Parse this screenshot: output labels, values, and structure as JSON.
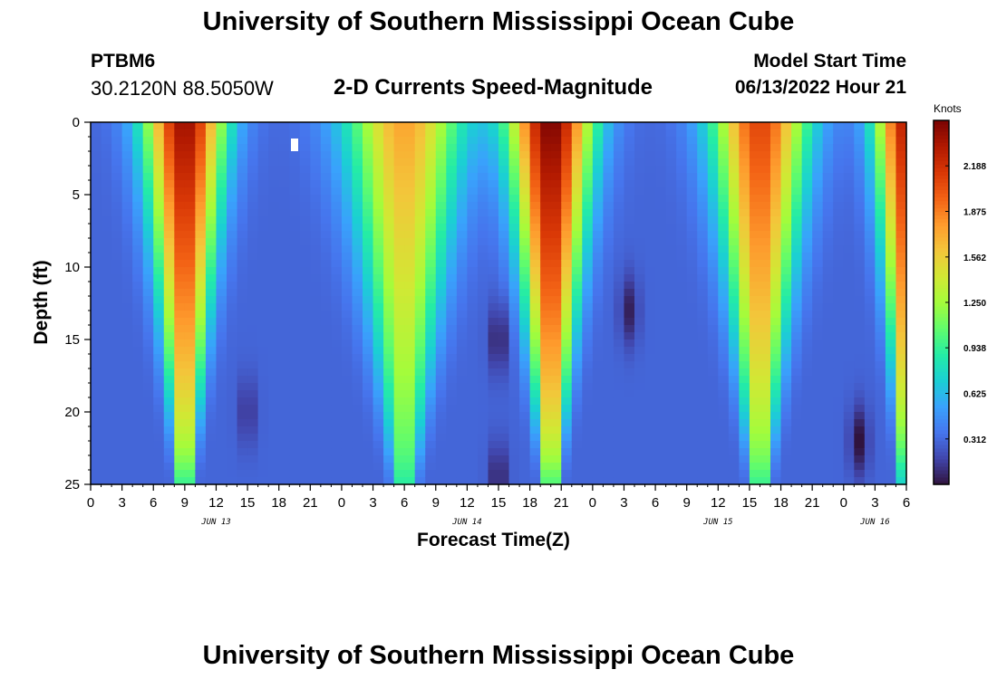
{
  "header": {
    "title": "University of Southern Mississippi Ocean Cube",
    "station": "PTBM6",
    "coordinates": "30.2120N  88.5050W",
    "subtitle": "2-D Currents Speed-Magnitude",
    "model_label": "Model Start Time",
    "model_time": "06/13/2022 Hour 21"
  },
  "footer": {
    "title": "University of Southern Mississippi Ocean Cube"
  },
  "colors": {
    "colormap": [
      "#30123b",
      "#4145ab",
      "#4675ed",
      "#39a2fc",
      "#1bcfd4",
      "#24eca6",
      "#61fc6c",
      "#a4fc3b",
      "#d1e834",
      "#f3c63a",
      "#fe9b2d",
      "#f36315",
      "#d93806",
      "#b11901",
      "#7a0402"
    ]
  },
  "chart_data": {
    "type": "heatmap",
    "title": "2-D Currents Speed-Magnitude",
    "xlabel": "Forecast Time(Z)",
    "ylabel": "Depth (ft)",
    "units": "Knots",
    "x_tick_labels": [
      "0",
      "3",
      "6",
      "9",
      "12",
      "15",
      "18",
      "21",
      "0",
      "3",
      "6",
      "9",
      "12",
      "15",
      "18",
      "21",
      "0",
      "3",
      "6",
      "9",
      "12",
      "15",
      "18",
      "21",
      "0",
      "3",
      "6"
    ],
    "x_tick_hours": [
      0,
      3,
      6,
      9,
      12,
      15,
      18,
      21,
      24,
      27,
      30,
      33,
      36,
      39,
      42,
      45,
      48,
      51,
      54,
      57,
      60,
      63,
      66,
      69,
      72,
      75,
      78
    ],
    "x_range_hours": [
      0,
      78
    ],
    "date_labels": [
      {
        "label": "JUN 13",
        "hour": 12
      },
      {
        "label": "JUN 14",
        "hour": 36
      },
      {
        "label": "JUN 15",
        "hour": 60
      },
      {
        "label": "JUN 16",
        "hour": 75
      }
    ],
    "y_ticks": [
      0,
      5,
      10,
      15,
      20,
      25
    ],
    "y_tick_labels": [
      "0",
      "5",
      "10",
      "15",
      "20",
      "25"
    ],
    "ylim": [
      0,
      25
    ],
    "y_inverted": true,
    "colorbar_ticks": [
      0.312,
      0.625,
      0.938,
      1.25,
      1.562,
      1.875,
      2.188
    ],
    "colorbar_tick_labels": [
      "0.312",
      "0.625",
      "0.938",
      "1.250",
      "1.562",
      "1.875",
      "2.188"
    ],
    "colorbar_range": [
      0,
      2.5
    ],
    "surface_speed_peaks": [
      {
        "hour": 9,
        "speed": 2.4,
        "width": 3.8
      },
      {
        "hour": 30,
        "speed": 1.75,
        "width": 5.5
      },
      {
        "hour": 44,
        "speed": 2.5,
        "width": 4.0
      },
      {
        "hour": 64,
        "speed": 2.1,
        "width": 4.5
      },
      {
        "hour": 78,
        "speed": 2.3,
        "width": 3.0
      }
    ],
    "surface_speed_base": 0.3,
    "min_speed_spots": [
      {
        "hour": 15,
        "depth": 20,
        "speed": 0.12
      },
      {
        "hour": 39,
        "depth": 15,
        "speed": 0.05
      },
      {
        "hour": 39,
        "depth": 24.5,
        "speed": 0.05
      },
      {
        "hour": 51.5,
        "depth": 13,
        "speed": 0.05
      },
      {
        "hour": 73.5,
        "depth": 22,
        "speed": 0.0
      }
    ]
  }
}
